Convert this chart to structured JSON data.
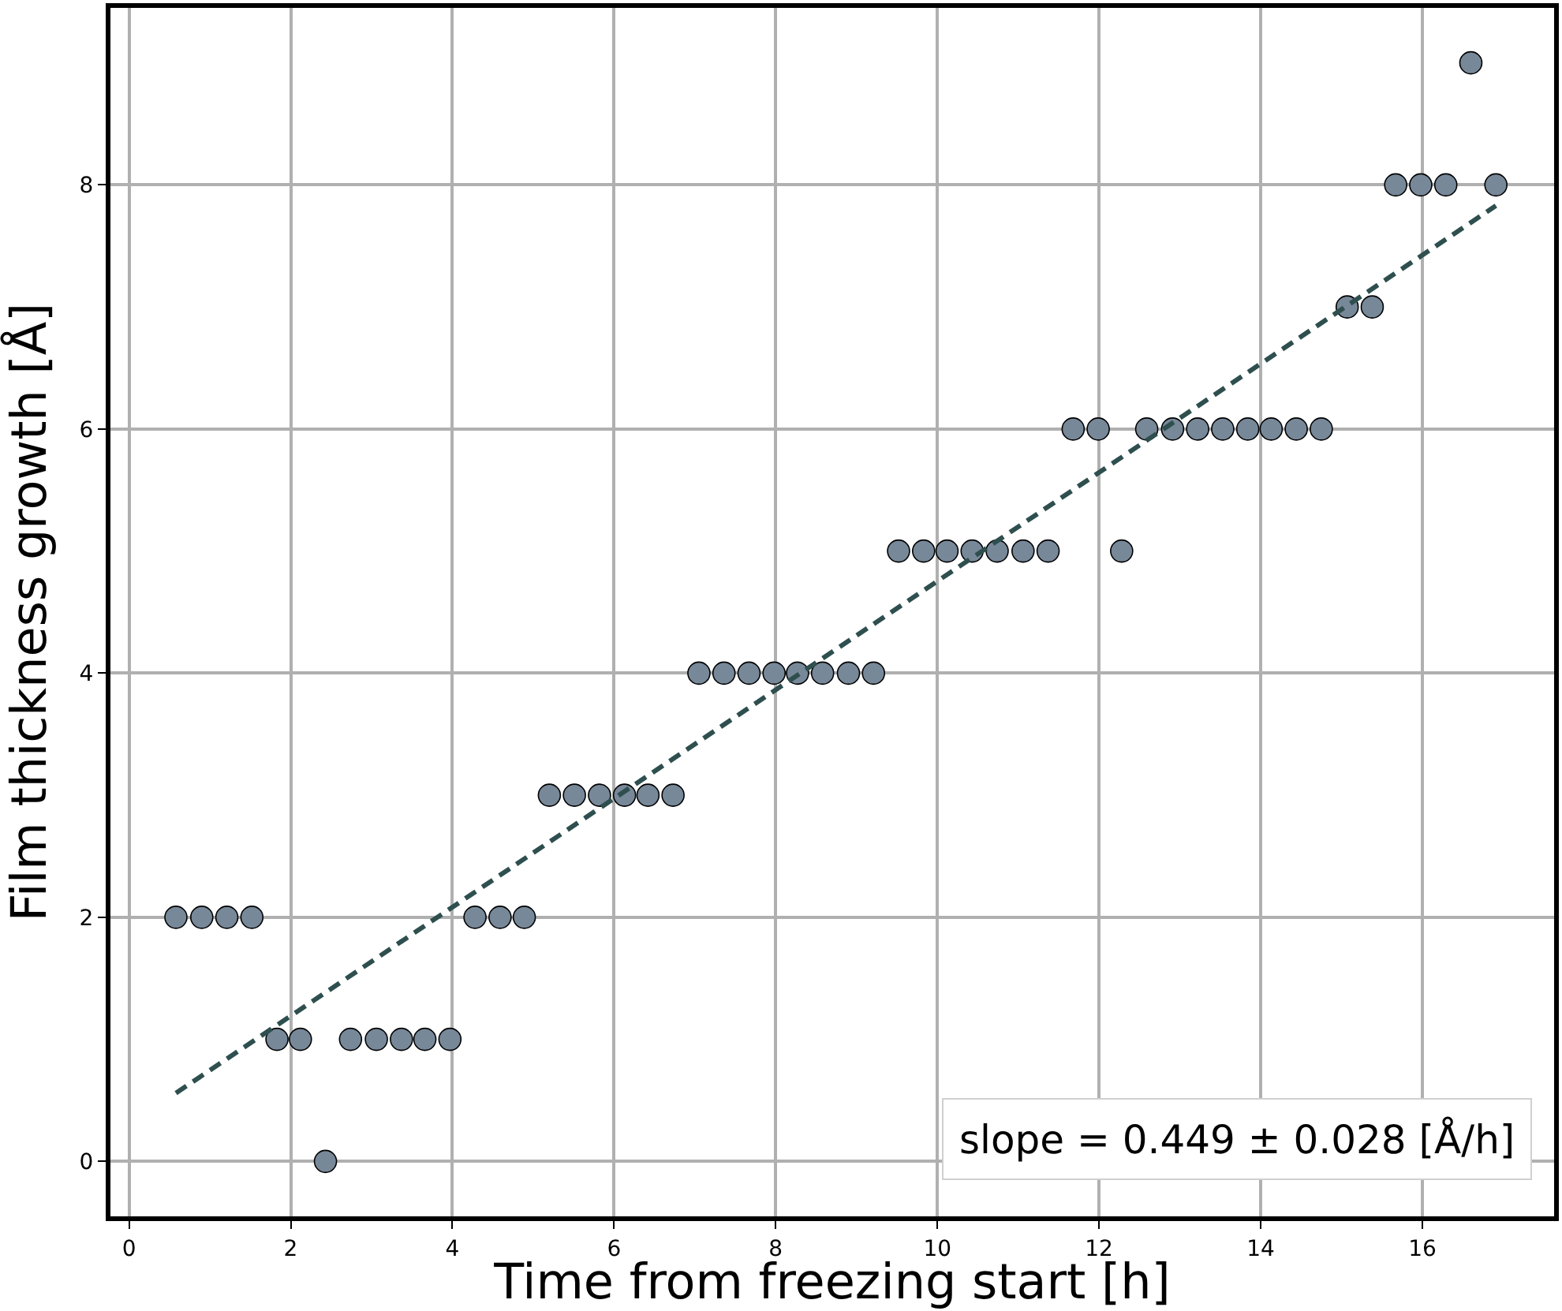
{
  "chart_data": {
    "type": "scatter",
    "xlabel": "Time from freezing start [h]",
    "ylabel": "Film thickness growth [Å]",
    "xlim": [
      -0.23,
      17.63
    ],
    "ylim": [
      -0.45,
      9.45
    ],
    "xticks": [
      0,
      2,
      4,
      6,
      8,
      10,
      12,
      14,
      16
    ],
    "yticks": [
      0,
      2,
      4,
      6,
      8
    ],
    "grid": true,
    "marker": "circle",
    "annotations": [
      "slope = 0.449 ± 0.028 [Å/h]"
    ],
    "series": [
      {
        "color": "#778899",
        "x": [
          0.58,
          0.9,
          1.21,
          1.52,
          1.83,
          2.12,
          2.43,
          2.74,
          3.06,
          3.37,
          3.66,
          3.97,
          4.28,
          4.59,
          4.89,
          5.2,
          5.51,
          5.82,
          6.13,
          6.42,
          6.73,
          7.05,
          7.36,
          7.67,
          7.98,
          8.27,
          8.58,
          8.9,
          9.21,
          9.52,
          9.83,
          10.12,
          10.43,
          10.74,
          11.06,
          11.37,
          11.68,
          11.99,
          12.28,
          12.59,
          12.91,
          13.22,
          13.53,
          13.84,
          14.13,
          14.44,
          14.75,
          15.07,
          15.38,
          15.67,
          15.98,
          16.29,
          16.6,
          16.91
        ],
        "values": [
          2,
          2,
          2,
          2,
          1,
          1,
          0,
          1,
          1,
          1,
          1,
          1,
          2,
          2,
          2,
          3,
          3,
          3,
          3,
          3,
          3,
          4,
          4,
          4,
          4,
          4,
          4,
          4,
          4,
          5,
          5,
          5,
          5,
          5,
          5,
          5,
          6,
          6,
          5,
          6,
          6,
          6,
          6,
          6,
          6,
          6,
          6,
          7,
          7,
          8,
          8,
          8,
          9,
          8
        ]
      },
      {
        "type": "line",
        "color": "#2f4f4f",
        "marker": "none",
        "line_style": "dashed",
        "x": [
          0.58,
          16.91
        ],
        "values": [
          0.56,
          7.83
        ]
      }
    ]
  }
}
